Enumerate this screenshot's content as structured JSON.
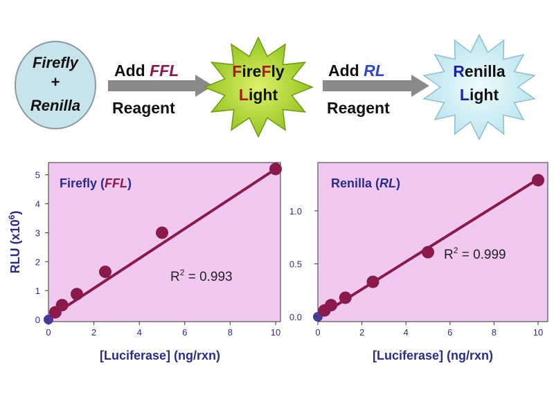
{
  "workflow": {
    "start": {
      "line1": "Firefly",
      "line2": "+",
      "line3": "Renilla"
    },
    "step1": {
      "word": "Add",
      "reagent_code": "FFL",
      "reagent": "Reagent"
    },
    "burst1": {
      "line1_a": "F",
      "line1_b": "ire",
      "line1_c": "F",
      "line1_d": "ly",
      "line2_a": "L",
      "line2_b": "ight"
    },
    "step2": {
      "word": "Add",
      "reagent_code": "RL",
      "reagent": "Reagent"
    },
    "burst2": {
      "line1_a": "R",
      "line1_b": "enilla",
      "line2_a": "L",
      "line2_b": "ight"
    }
  },
  "chart_data": [
    {
      "type": "scatter",
      "title_pre": "Firefly (",
      "title_code": "FFL",
      "title_post": ")",
      "xlabel": "[Luciferase] (ng/rxn)",
      "ylabel_pre": "RLU (x10",
      "ylabel_exp": "6",
      "ylabel_post": ")",
      "xlim": [
        0,
        10
      ],
      "ylim": [
        0,
        5.4
      ],
      "x_ticks": [
        "0",
        "2",
        "4",
        "6",
        "8",
        "10"
      ],
      "y_ticks": [
        "0",
        "1",
        "2",
        "3",
        "4",
        "5"
      ],
      "x_tick_values": [
        0,
        2,
        4,
        6,
        8,
        10
      ],
      "y_tick_values": [
        0,
        1,
        2,
        3,
        4,
        5
      ],
      "x": [
        0,
        0.3,
        0.6,
        1.25,
        2.5,
        5,
        10
      ],
      "y": [
        0,
        0.25,
        0.5,
        0.88,
        1.65,
        3.0,
        5.2
      ],
      "fit": {
        "x": [
          0,
          10
        ],
        "y": [
          0.05,
          5.2
        ]
      },
      "r2_label": "R",
      "r2_sup": "2",
      "r2_value": " = 0.993",
      "background": "#f0c8f0",
      "marker_color": "#8b1a4c"
    },
    {
      "type": "scatter",
      "title_pre": "Renilla (",
      "title_code": "RL",
      "title_post": ")",
      "xlabel": "[Luciferase] (ng/rxn)",
      "xlim": [
        0,
        10
      ],
      "ylim": [
        0,
        1.45
      ],
      "x_ticks": [
        "0",
        "2",
        "4",
        "6",
        "8",
        "10"
      ],
      "y_ticks": [
        "0.0",
        "0.5",
        "1.0"
      ],
      "x_tick_values": [
        0,
        2,
        4,
        6,
        8,
        10
      ],
      "y_tick_values": [
        0,
        0.5,
        1.0
      ],
      "x": [
        0,
        0.3,
        0.6,
        1.25,
        2.5,
        5,
        10
      ],
      "y": [
        0,
        0.06,
        0.11,
        0.18,
        0.33,
        0.61,
        1.29
      ],
      "fit": {
        "x": [
          0,
          10
        ],
        "y": [
          0.0,
          1.3
        ]
      },
      "r2_label": "R",
      "r2_sup": "2",
      "r2_value": " = 0.999",
      "background": "#f0c8f0",
      "marker_color": "#8b1a4c"
    }
  ],
  "colors": {
    "navy": "#2b2b8c",
    "maroon": "#8b1a4c",
    "red": "#b0141e",
    "blue_text": "#1f1fa8",
    "ellipse_fill": "#c7e4ea",
    "burst1_fill": "#9bd018",
    "burst2_fill": "#cdeef4",
    "arrow": "#8a8a8a"
  }
}
